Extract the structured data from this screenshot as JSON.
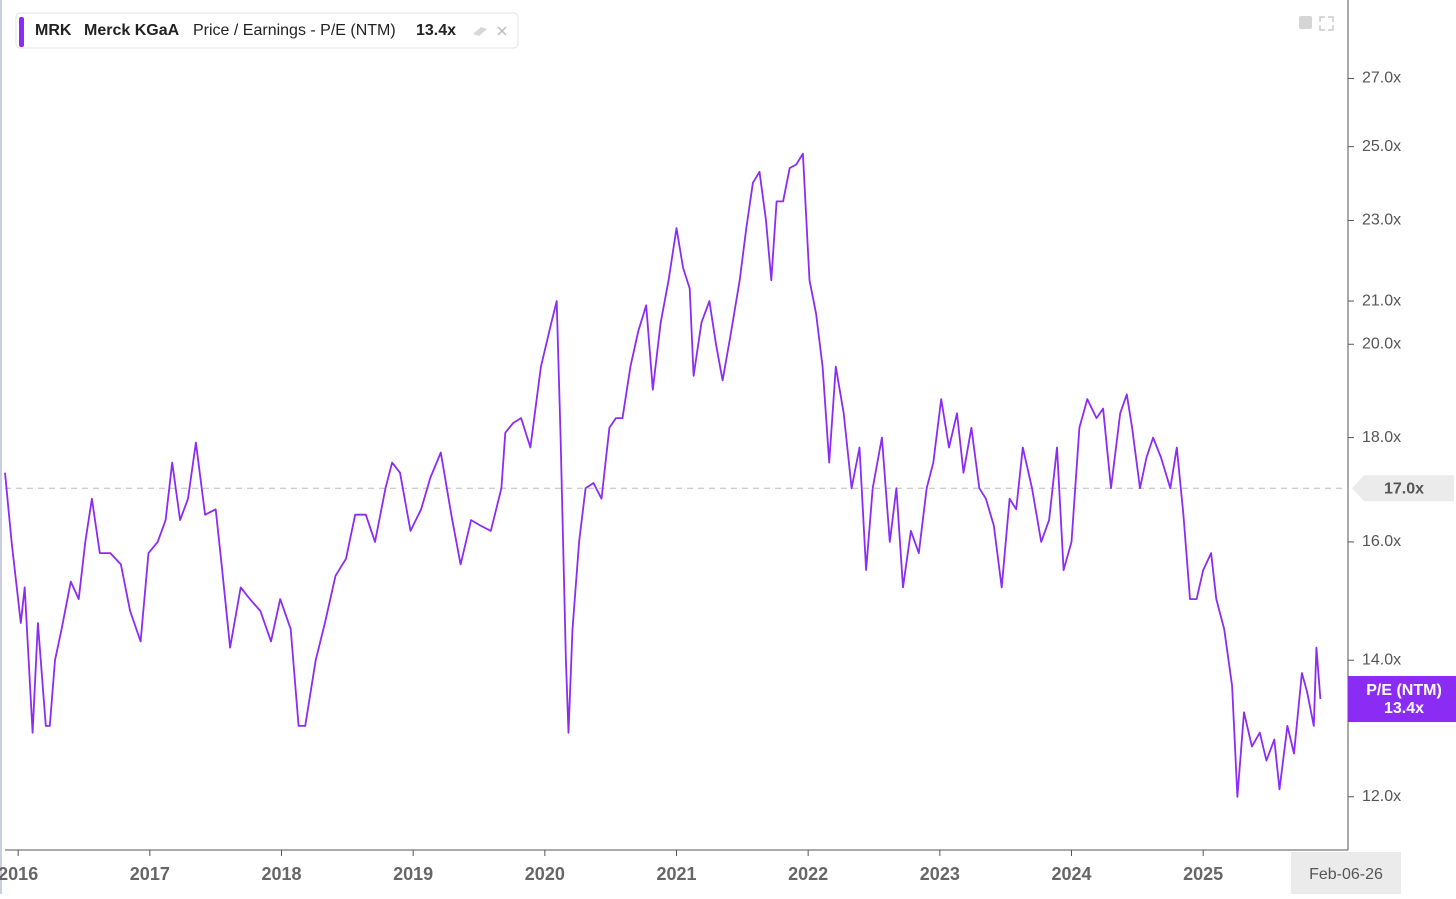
{
  "chart_data": {
    "type": "line",
    "ticker": "MRK",
    "company": "Merck KGaA",
    "metric": "Price / Earnings - P/E (NTM)",
    "current_value": 13.4,
    "current_value_label": "13.4x",
    "last_date": "Feb-06-26",
    "log_y": true,
    "grid": false,
    "xlim": [
      2015.9,
      2026.1
    ],
    "ylim": [
      11.3,
      29.5
    ],
    "xticks": [
      2016,
      2017,
      2018,
      2019,
      2020,
      2021,
      2022,
      2023,
      2024,
      2025
    ],
    "yticks": [
      {
        "value": 12,
        "label": "12.0x"
      },
      {
        "value": 14,
        "label": "14.0x"
      },
      {
        "value": 16,
        "label": "16.0x"
      },
      {
        "value": 18,
        "label": "18.0x"
      },
      {
        "value": 20,
        "label": "20.0x"
      },
      {
        "value": 21,
        "label": "21.0x"
      },
      {
        "value": 23,
        "label": "23.0x"
      },
      {
        "value": 25,
        "label": "25.0x"
      },
      {
        "value": 27,
        "label": "27.0x"
      }
    ],
    "reference_line": {
      "value": 17,
      "label": "17.0x"
    },
    "x": [
      2015.9,
      2015.95,
      2016.02,
      2016.05,
      2016.11,
      2016.15,
      2016.21,
      2016.24,
      2016.28,
      2016.33,
      2016.4,
      2016.46,
      2016.51,
      2016.56,
      2016.62,
      2016.7,
      2016.78,
      2016.85,
      2016.93,
      2016.99,
      2017.06,
      2017.12,
      2017.17,
      2017.23,
      2017.29,
      2017.35,
      2017.42,
      2017.5,
      2017.55,
      2017.61,
      2017.69,
      2017.76,
      2017.84,
      2017.92,
      2017.99,
      2018.07,
      2018.13,
      2018.18,
      2018.26,
      2018.33,
      2018.41,
      2018.49,
      2018.56,
      2018.64,
      2018.71,
      2018.79,
      2018.84,
      2018.9,
      2018.98,
      2019.06,
      2019.13,
      2019.21,
      2019.29,
      2019.36,
      2019.44,
      2019.51,
      2019.59,
      2019.67,
      2019.7,
      2019.76,
      2019.82,
      2019.89,
      2019.97,
      2020.05,
      2020.09,
      2020.12,
      2020.16,
      2020.18,
      2020.21,
      2020.26,
      2020.31,
      2020.37,
      2020.43,
      2020.49,
      2020.54,
      2020.59,
      2020.65,
      2020.71,
      2020.77,
      2020.82,
      2020.88,
      2020.94,
      2021.0,
      2021.05,
      2021.1,
      2021.13,
      2021.19,
      2021.25,
      2021.3,
      2021.35,
      2021.41,
      2021.48,
      2021.53,
      2021.58,
      2021.63,
      2021.68,
      2021.72,
      2021.76,
      2021.81,
      2021.86,
      2021.91,
      2021.96,
      2022.01,
      2022.06,
      2022.11,
      2022.16,
      2022.21,
      2022.27,
      2022.33,
      2022.39,
      2022.44,
      2022.49,
      2022.56,
      2022.62,
      2022.67,
      2022.72,
      2022.78,
      2022.84,
      2022.9,
      2022.95,
      2023.01,
      2023.07,
      2023.13,
      2023.18,
      2023.24,
      2023.3,
      2023.35,
      2023.41,
      2023.47,
      2023.53,
      2023.58,
      2023.63,
      2023.7,
      2023.77,
      2023.83,
      2023.89,
      2023.94,
      2024.0,
      2024.06,
      2024.12,
      2024.19,
      2024.24,
      2024.3,
      2024.37,
      2024.42,
      2024.46,
      2024.52,
      2024.57,
      2024.62,
      2024.68,
      2024.75,
      2024.8,
      2024.85,
      2024.9,
      2024.95,
      2025.0,
      2025.06,
      2025.1,
      2025.16,
      2025.22,
      2025.26,
      2025.31,
      2025.37,
      2025.43,
      2025.48,
      2025.54,
      2025.58,
      2025.64,
      2025.69,
      2025.75,
      2025.79,
      2025.84,
      2025.86,
      2025.89
    ],
    "series": [
      {
        "name": "P/E (NTM)",
        "color": "#8b2cf5",
        "values": [
          17.3,
          16.0,
          14.6,
          15.2,
          12.9,
          14.6,
          13.0,
          13.0,
          14.0,
          14.5,
          15.3,
          15.0,
          16.0,
          16.8,
          15.8,
          15.8,
          15.6,
          14.8,
          14.3,
          15.8,
          16.0,
          16.4,
          17.5,
          16.4,
          16.8,
          17.9,
          16.5,
          16.6,
          15.5,
          14.2,
          15.2,
          15.0,
          14.8,
          14.3,
          15.0,
          14.5,
          13.0,
          13.0,
          14.0,
          14.6,
          15.4,
          15.7,
          16.5,
          16.5,
          16.0,
          17.0,
          17.5,
          17.3,
          16.2,
          16.6,
          17.2,
          17.7,
          16.5,
          15.6,
          16.4,
          16.3,
          16.2,
          17.0,
          18.1,
          18.3,
          18.4,
          17.8,
          19.5,
          20.5,
          21.0,
          18.0,
          14.0,
          12.9,
          14.5,
          16.0,
          17.0,
          17.1,
          16.8,
          18.2,
          18.4,
          18.4,
          19.5,
          20.3,
          20.9,
          19.0,
          20.5,
          21.5,
          22.8,
          21.8,
          21.3,
          19.3,
          20.5,
          21.0,
          20.0,
          19.2,
          20.2,
          21.5,
          22.8,
          24.0,
          24.3,
          23.0,
          21.5,
          23.5,
          23.5,
          24.4,
          24.5,
          24.8,
          21.5,
          20.7,
          19.5,
          17.5,
          19.5,
          18.5,
          17.0,
          17.8,
          15.5,
          17.0,
          18.0,
          16.0,
          17.0,
          15.2,
          16.2,
          15.8,
          17.0,
          17.5,
          18.8,
          17.8,
          18.5,
          17.3,
          18.2,
          17.0,
          16.8,
          16.3,
          15.2,
          16.8,
          16.6,
          17.8,
          17.0,
          16.0,
          16.4,
          17.8,
          15.5,
          16.0,
          18.2,
          18.8,
          18.4,
          18.6,
          17.0,
          18.5,
          18.9,
          18.2,
          17.0,
          17.6,
          18.0,
          17.6,
          17.0,
          17.8,
          16.5,
          15.0,
          15.0,
          15.5,
          15.8,
          15.0,
          14.5,
          13.6,
          12.0,
          13.2,
          12.7,
          12.9,
          12.5,
          12.8,
          12.1,
          13.0,
          12.6,
          13.8,
          13.5,
          13.0,
          14.2,
          13.4
        ]
      }
    ]
  }
}
